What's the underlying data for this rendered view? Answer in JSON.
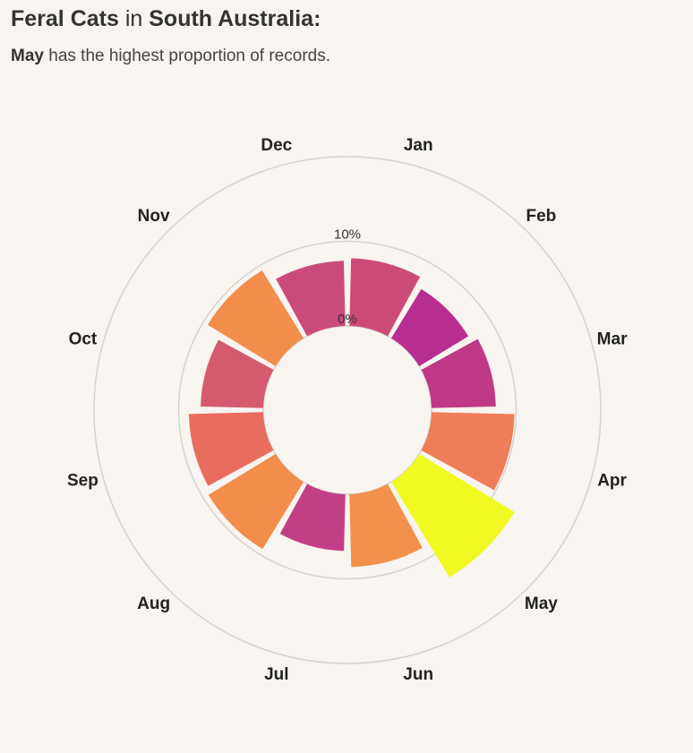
{
  "header": {
    "title_species": "Feral Cats",
    "title_in": " in ",
    "title_region": "South Australia",
    "title_colon": ":",
    "subtitle_month": "May",
    "subtitle_rest": " has the highest proportion of records."
  },
  "chart_data": {
    "type": "radial-bar",
    "title": "Feral Cats in South Australia:",
    "subtitle": "May has the highest proportion of records.",
    "categories": [
      "Jan",
      "Feb",
      "Mar",
      "Apr",
      "May",
      "Jun",
      "Jul",
      "Aug",
      "Sep",
      "Oct",
      "Nov",
      "Dec"
    ],
    "values": [
      8.0,
      6.8,
      7.6,
      9.8,
      13.2,
      8.6,
      6.7,
      9.3,
      8.8,
      7.4,
      9.4,
      7.7
    ],
    "unit": "%",
    "radial_ticks": [
      {
        "value": 0,
        "label": "0%"
      },
      {
        "value": 10,
        "label": "10%"
      },
      {
        "value": 20,
        "label": ""
      }
    ],
    "rmax": 20,
    "colors": [
      "#cc4a77",
      "#b82d90",
      "#c03888",
      "#ef7e58",
      "#f0f921",
      "#f2904c",
      "#c33f85",
      "#f28d4b",
      "#e96c60",
      "#d65a6f",
      "#f28d4b",
      "#ca4a7c"
    ]
  }
}
